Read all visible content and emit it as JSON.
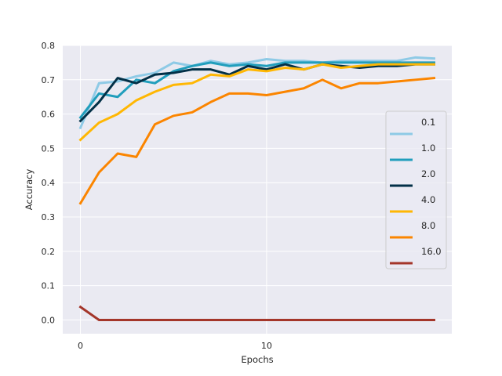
{
  "chart_data": {
    "type": "line",
    "xlabel": "Epochs",
    "ylabel": "Accuracy",
    "xlim": [
      -0.95,
      19.95
    ],
    "ylim": [
      -0.04,
      0.8
    ],
    "xticks": [
      0,
      10
    ],
    "yticks": [
      0.0,
      0.1,
      0.2,
      0.3,
      0.4,
      0.5,
      0.6,
      0.7,
      0.8
    ],
    "ytick_labels": [
      "0.0",
      "0.1",
      "0.2",
      "0.3",
      "0.4",
      "0.5",
      "0.6",
      "0.7",
      "0.8"
    ],
    "xtick_labels": [
      "0",
      "10"
    ],
    "grid": true,
    "legend_position": "center-right",
    "x": [
      0,
      1,
      2,
      3,
      4,
      5,
      6,
      7,
      8,
      9,
      10,
      11,
      12,
      13,
      14,
      15,
      16,
      17,
      18,
      19
    ],
    "series": [
      {
        "name": "0.1",
        "color": "#8ecae6",
        "values": [
          0.56,
          0.69,
          0.695,
          0.71,
          0.72,
          0.75,
          0.74,
          0.755,
          0.745,
          0.75,
          0.76,
          0.755,
          0.755,
          0.75,
          0.755,
          0.755,
          0.755,
          0.755,
          0.765,
          0.762
        ]
      },
      {
        "name": "1.0",
        "color": "#219ebc",
        "values": [
          0.59,
          0.66,
          0.65,
          0.7,
          0.69,
          0.725,
          0.74,
          0.75,
          0.74,
          0.745,
          0.74,
          0.75,
          0.75,
          0.75,
          0.75,
          0.75,
          0.75,
          0.75,
          0.75,
          0.75
        ]
      },
      {
        "name": "2.0",
        "color": "#023047",
        "values": [
          0.58,
          0.635,
          0.705,
          0.69,
          0.715,
          0.72,
          0.73,
          0.73,
          0.715,
          0.74,
          0.73,
          0.745,
          0.73,
          0.745,
          0.74,
          0.735,
          0.74,
          0.74,
          0.745,
          0.745
        ]
      },
      {
        "name": "4.0",
        "color": "#ffb703",
        "values": [
          0.525,
          0.575,
          0.6,
          0.64,
          0.665,
          0.685,
          0.69,
          0.715,
          0.71,
          0.73,
          0.725,
          0.735,
          0.73,
          0.745,
          0.735,
          0.74,
          0.745,
          0.745,
          0.745,
          0.745
        ]
      },
      {
        "name": "8.0",
        "color": "#fb8500",
        "values": [
          0.34,
          0.43,
          0.485,
          0.475,
          0.57,
          0.595,
          0.605,
          0.635,
          0.66,
          0.66,
          0.655,
          0.665,
          0.675,
          0.7,
          0.675,
          0.69,
          0.69,
          0.695,
          0.7,
          0.705
        ]
      },
      {
        "name": "16.0",
        "color": "#a4362a",
        "values": [
          0.038,
          0.0,
          0.0,
          0.0,
          0.0,
          0.0,
          0.0,
          0.0,
          0.0,
          0.0,
          0.0,
          0.0,
          0.0,
          0.0,
          0.0,
          0.0,
          0.0,
          0.0,
          0.0,
          0.0
        ]
      }
    ]
  }
}
